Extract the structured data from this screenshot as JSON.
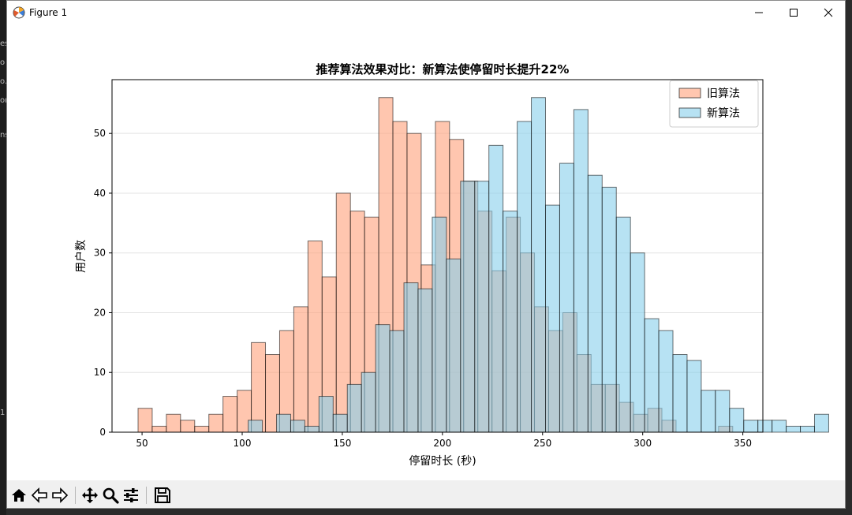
{
  "window": {
    "title": "Figure 1"
  },
  "backdrop_fragments": [
    "es",
    "o",
    "o.",
    "or",
    "ns",
    "1"
  ],
  "toolbar": {
    "items": [
      {
        "name": "home-button",
        "icon": "home-icon"
      },
      {
        "name": "back-button",
        "icon": "arrow-left-icon"
      },
      {
        "name": "forward-button",
        "icon": "arrow-right-icon"
      },
      {
        "name": "pan-button",
        "icon": "move-icon"
      },
      {
        "name": "zoom-button",
        "icon": "magnifier-icon"
      },
      {
        "name": "configure-subplots-button",
        "icon": "sliders-icon"
      },
      {
        "name": "save-button",
        "icon": "floppy-disk-icon"
      }
    ]
  },
  "chart_data": {
    "type": "bar",
    "subtype": "overlapping-histogram",
    "title": "推荐算法效果对比：新算法使停留时长提升22%",
    "xlabel": "停留时长 (秒)",
    "ylabel": "用户数",
    "xlim": [
      35,
      360
    ],
    "ylim": [
      0,
      59
    ],
    "xticks": [
      50,
      100,
      150,
      200,
      250,
      300,
      350
    ],
    "yticks": [
      0,
      10,
      20,
      30,
      40,
      50
    ],
    "grid": {
      "axis": "y",
      "on": true
    },
    "legend": {
      "position": "top-right"
    },
    "series": [
      {
        "name": "旧算法",
        "color": "#FFA07A",
        "bin_width": 7.07,
        "bin_start": 48.0,
        "counts": [
          4,
          1,
          3,
          2,
          1,
          3,
          6,
          7,
          15,
          13,
          17,
          21,
          32,
          26,
          40,
          37,
          36,
          56,
          52,
          50,
          28,
          52,
          49,
          42,
          37,
          27,
          36,
          30,
          21,
          17,
          20,
          13,
          8,
          8,
          5,
          3,
          4,
          2,
          0,
          0,
          0,
          1,
          0,
          0,
          0,
          0
        ]
      },
      {
        "name": "新算法",
        "color": "#87CEEB",
        "bin_width": 7.07,
        "bin_start": 103.0,
        "counts": [
          2,
          0,
          3,
          2,
          1,
          6,
          3,
          8,
          10,
          18,
          17,
          25,
          24,
          36,
          29,
          42,
          42,
          48,
          37,
          52,
          56,
          38,
          45,
          54,
          43,
          41,
          36,
          30,
          19,
          17,
          13,
          12,
          7,
          7,
          4,
          2,
          2,
          2,
          1,
          1,
          3
        ]
      }
    ]
  }
}
